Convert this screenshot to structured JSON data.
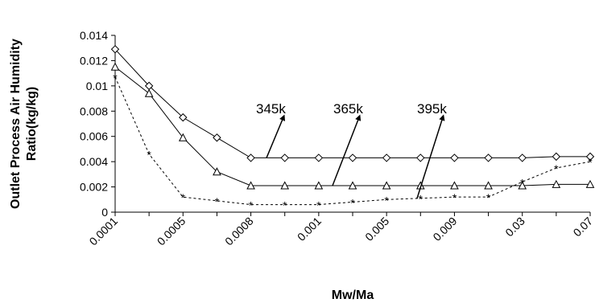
{
  "chart_data": {
    "type": "line",
    "title": "",
    "xlabel": "Mw/Ma",
    "ylabel_line1": "Outlet Process Air Humidity",
    "ylabel_line2": "Ratio(kg/kg)",
    "ylim": [
      0,
      0.014
    ],
    "y_ticks": [
      "0",
      "0.002",
      "0.004",
      "0.006",
      "0.008",
      "0.01",
      "0.012",
      "0.014"
    ],
    "x_tick_labels": [
      "0.0001",
      "0.0005",
      "0.0008",
      "0.001",
      "0.005",
      "0.009",
      "0.03",
      "0.07"
    ],
    "x": [
      "0.0001",
      "0.0003",
      "0.0005",
      "0.0007",
      "0.0008",
      "0.0009",
      "0.001",
      "0.003",
      "0.005",
      "0.007",
      "0.009",
      "0.01",
      "0.03",
      "0.05",
      "0.07"
    ],
    "series": [
      {
        "name": "345k",
        "marker": "diamond",
        "values": [
          0.0129,
          0.01,
          0.0075,
          0.0059,
          0.0043,
          0.0043,
          0.0043,
          0.0043,
          0.0043,
          0.0043,
          0.0043,
          0.0043,
          0.0043,
          0.0044,
          0.0044
        ]
      },
      {
        "name": "365k",
        "marker": "triangle",
        "values": [
          0.0115,
          0.0094,
          0.0059,
          0.0032,
          0.0021,
          0.0021,
          0.0021,
          0.0021,
          0.0021,
          0.0021,
          0.0021,
          0.0021,
          0.0021,
          0.0022,
          0.0022
        ]
      },
      {
        "name": "395k",
        "marker": "star",
        "values": [
          0.0107,
          0.0046,
          0.0012,
          0.0009,
          0.0006,
          0.0006,
          0.0006,
          0.0008,
          0.001,
          0.0011,
          0.0012,
          0.0012,
          0.0024,
          0.0035,
          0.004
        ]
      }
    ],
    "annotations": [
      {
        "text": "345k",
        "series": "345k"
      },
      {
        "text": "365k",
        "series": "365k"
      },
      {
        "text": "395k",
        "series": "395k"
      }
    ],
    "grid": false,
    "legend": "none"
  }
}
